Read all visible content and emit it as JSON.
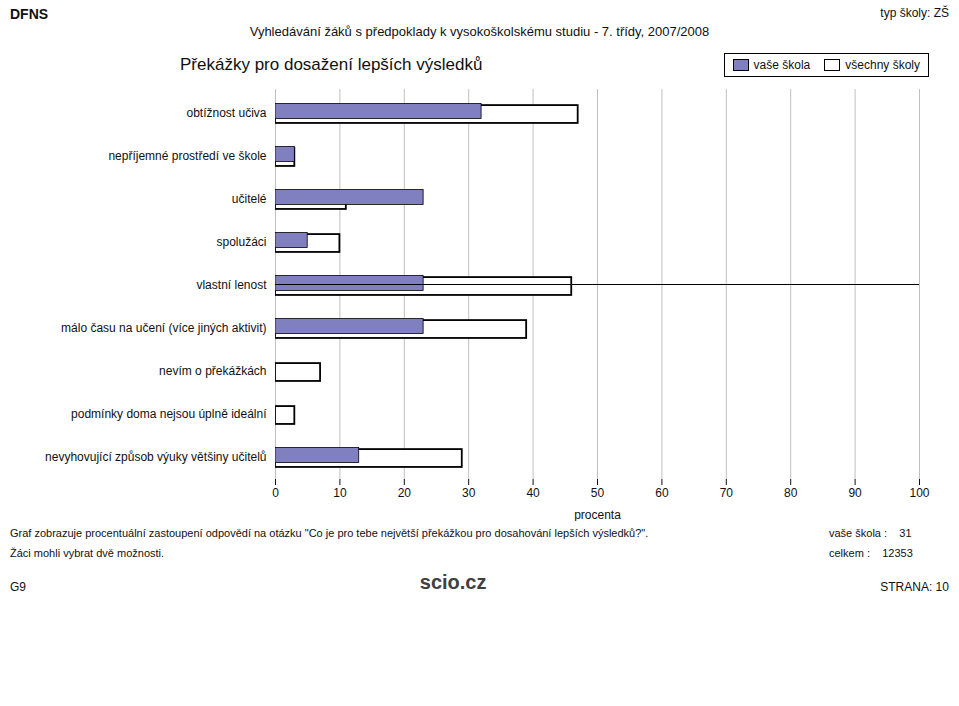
{
  "chart_data": {
    "type": "bar",
    "orientation": "horizontal",
    "title": "Překážky pro dosažení lepších výsledků",
    "subtitle": "Vyhledávání žáků s předpoklady k vysokoškolskému studiu - 7. třídy, 2007/2008",
    "categories": [
      "obtížnost učiva",
      "nepříjemné prostředí ve škole",
      "učitelé",
      "spolužáci",
      "vlastní lenost",
      "málo času na učení (více jiných aktivit)",
      "nevím o překážkách",
      "podmínky doma nejsou úplně ideální",
      "nevyhovující způsob výuky většiny učitelů"
    ],
    "series": [
      {
        "name": "vaše škola",
        "color": "#8080c0",
        "values": [
          32,
          3,
          23,
          5,
          23,
          23,
          0,
          0,
          13
        ]
      },
      {
        "name": "všechny školy",
        "color": "#ffffff",
        "values": [
          47,
          3,
          11,
          10,
          46,
          39,
          7,
          3,
          29
        ]
      }
    ],
    "xlabel": "procenta",
    "xlim": [
      0,
      100
    ],
    "xticks": [
      0,
      10,
      20,
      30,
      40,
      50,
      60,
      70,
      80,
      90,
      100
    ],
    "grid": true,
    "legend": "upper right",
    "annotations": [
      "DFNS",
      "typ školy: ZŠ",
      "Graf zobrazuje procentuální zastoupení odpovědí na otázku \"Co je pro tebe největší překážkou pro dosahování lepších výsledků?\".",
      "Žáci mohli vybrat dvě možnosti.",
      "vaše škola :    31",
      "celkem :    12353",
      "G9",
      "STRANA: 10",
      "scio.cz"
    ]
  }
}
